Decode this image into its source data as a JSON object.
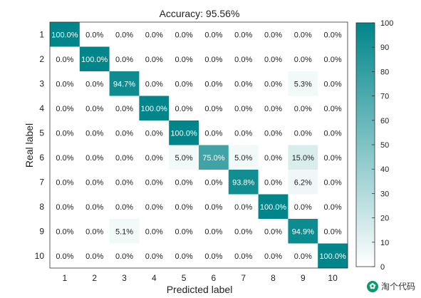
{
  "chart_data": {
    "type": "heatmap",
    "title": "Accuracy: 95.56%",
    "xlabel": "Predicted label",
    "ylabel": "Real label",
    "x_categories": [
      "1",
      "2",
      "3",
      "4",
      "5",
      "6",
      "7",
      "8",
      "9",
      "10"
    ],
    "y_categories": [
      "1",
      "2",
      "3",
      "4",
      "5",
      "6",
      "7",
      "8",
      "9",
      "10"
    ],
    "values": [
      [
        100.0,
        0.0,
        0.0,
        0.0,
        0.0,
        0.0,
        0.0,
        0.0,
        0.0,
        0.0
      ],
      [
        0.0,
        100.0,
        0.0,
        0.0,
        0.0,
        0.0,
        0.0,
        0.0,
        0.0,
        0.0
      ],
      [
        0.0,
        0.0,
        94.7,
        0.0,
        0.0,
        0.0,
        0.0,
        0.0,
        5.3,
        0.0
      ],
      [
        0.0,
        0.0,
        0.0,
        100.0,
        0.0,
        0.0,
        0.0,
        0.0,
        0.0,
        0.0
      ],
      [
        0.0,
        0.0,
        0.0,
        0.0,
        100.0,
        0.0,
        0.0,
        0.0,
        0.0,
        0.0
      ],
      [
        0.0,
        0.0,
        0.0,
        0.0,
        5.0,
        75.0,
        5.0,
        0.0,
        15.0,
        0.0
      ],
      [
        0.0,
        0.0,
        0.0,
        0.0,
        0.0,
        0.0,
        93.8,
        0.0,
        6.2,
        0.0
      ],
      [
        0.0,
        0.0,
        0.0,
        0.0,
        0.0,
        0.0,
        0.0,
        100.0,
        0.0,
        0.0
      ],
      [
        0.0,
        0.0,
        5.1,
        0.0,
        0.0,
        0.0,
        0.0,
        0.0,
        94.9,
        0.0
      ],
      [
        0.0,
        0.0,
        0.0,
        0.0,
        0.0,
        0.0,
        0.0,
        0.0,
        0.0,
        100.0
      ]
    ],
    "value_suffix": "%",
    "colorbar": {
      "min": 0,
      "max": 100,
      "ticks": [
        0,
        10,
        20,
        30,
        40,
        50,
        60,
        70,
        80,
        90,
        100
      ],
      "color_low": "#ffffff",
      "color_high": "#00868a"
    }
  },
  "watermark": {
    "text": "淘个代码"
  }
}
